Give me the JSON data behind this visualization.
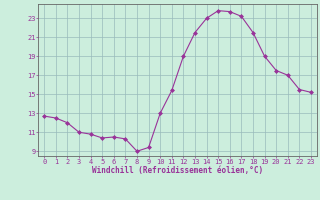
{
  "x": [
    0,
    1,
    2,
    3,
    4,
    5,
    6,
    7,
    8,
    9,
    10,
    11,
    12,
    13,
    14,
    15,
    16,
    17,
    18,
    19,
    20,
    21,
    22,
    23
  ],
  "y": [
    12.7,
    12.5,
    12.0,
    11.0,
    10.8,
    10.4,
    10.5,
    10.3,
    9.0,
    9.4,
    13.0,
    15.4,
    19.0,
    21.5,
    23.0,
    23.8,
    23.7,
    23.2,
    21.5,
    19.0,
    17.5,
    17.0,
    15.5,
    15.2
  ],
  "line_color": "#993399",
  "marker": "D",
  "marker_size": 2.0,
  "bg_color": "#cceedd",
  "grid_color": "#99bbbb",
  "xlabel": "Windchill (Refroidissement éolien,°C)",
  "xlabel_color": "#993399",
  "tick_color": "#993399",
  "axis_color": "#666666",
  "ylim": [
    8.5,
    24.5
  ],
  "xlim": [
    -0.5,
    23.5
  ],
  "yticks": [
    9,
    11,
    13,
    15,
    17,
    19,
    21,
    23
  ],
  "xticks": [
    0,
    1,
    2,
    3,
    4,
    5,
    6,
    7,
    8,
    9,
    10,
    11,
    12,
    13,
    14,
    15,
    16,
    17,
    18,
    19,
    20,
    21,
    22,
    23
  ],
  "tick_fontsize": 5.0,
  "xlabel_fontsize": 5.5
}
